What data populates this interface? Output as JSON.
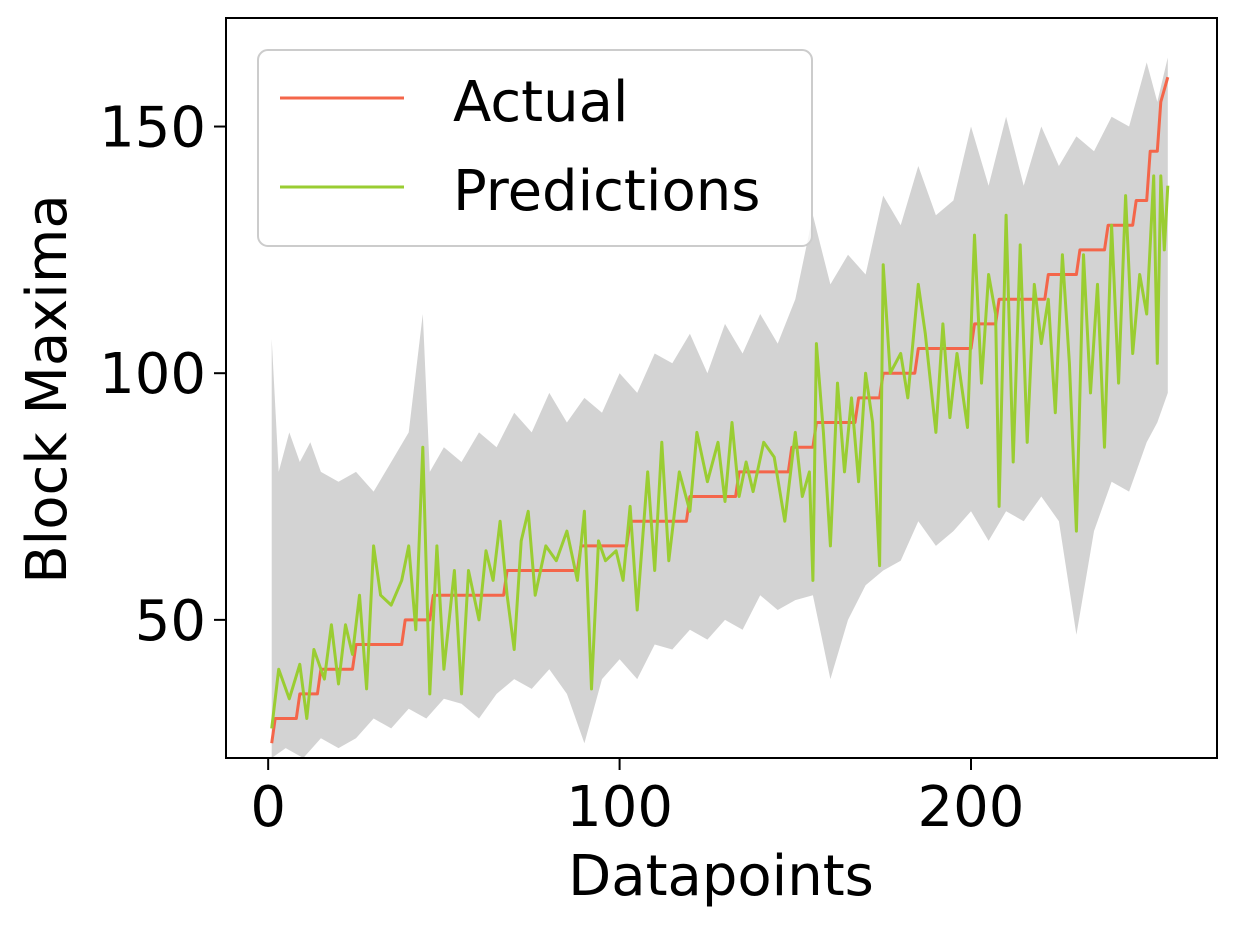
{
  "chart_data": {
    "type": "line",
    "title": "",
    "xlabel": "Datapoints",
    "ylabel": "Block Maxima",
    "xlim": [
      -12,
      270
    ],
    "ylim": [
      22,
      172
    ],
    "xticks": [
      0,
      100,
      200
    ],
    "yticks": [
      50,
      100,
      150
    ],
    "grid": false,
    "legend": {
      "placement": "upper-left",
      "entries": [
        "Actual",
        "Predictions"
      ]
    },
    "colors": {
      "actual": "#f4664a",
      "predictions": "#9acd32",
      "band": "#d3d3d3"
    },
    "series": [
      {
        "name": "Actual",
        "color": "#f4664a",
        "steps": [
          [
            1,
            25
          ],
          [
            2,
            30
          ],
          [
            8,
            30
          ],
          [
            9,
            35
          ],
          [
            14,
            35
          ],
          [
            15,
            40
          ],
          [
            24,
            40
          ],
          [
            25,
            45
          ],
          [
            38,
            45
          ],
          [
            39,
            50
          ],
          [
            46,
            50
          ],
          [
            47,
            55
          ],
          [
            67,
            55
          ],
          [
            68,
            60
          ],
          [
            88,
            60
          ],
          [
            89,
            65
          ],
          [
            102,
            65
          ],
          [
            103,
            70
          ],
          [
            119,
            70
          ],
          [
            120,
            75
          ],
          [
            133,
            75
          ],
          [
            134,
            80
          ],
          [
            148,
            80
          ],
          [
            149,
            85
          ],
          [
            155,
            85
          ],
          [
            156,
            90
          ],
          [
            167,
            90
          ],
          [
            168,
            95
          ],
          [
            174,
            95
          ],
          [
            175,
            100
          ],
          [
            184,
            100
          ],
          [
            185,
            105
          ],
          [
            200,
            105
          ],
          [
            201,
            110
          ],
          [
            207,
            110
          ],
          [
            208,
            115
          ],
          [
            221,
            115
          ],
          [
            222,
            120
          ],
          [
            230,
            120
          ],
          [
            231,
            125
          ],
          [
            238,
            125
          ],
          [
            239,
            130
          ],
          [
            246,
            130
          ],
          [
            247,
            135
          ],
          [
            250,
            135
          ],
          [
            251,
            145
          ],
          [
            253,
            145
          ],
          [
            254,
            155
          ],
          [
            256,
            160
          ]
        ]
      },
      {
        "name": "Predictions",
        "color": "#9acd32",
        "anchors": [
          [
            1,
            28
          ],
          [
            3,
            40
          ],
          [
            6,
            34
          ],
          [
            9,
            41
          ],
          [
            11,
            30
          ],
          [
            13,
            44
          ],
          [
            16,
            38
          ],
          [
            18,
            49
          ],
          [
            20,
            37
          ],
          [
            22,
            49
          ],
          [
            24,
            43
          ],
          [
            26,
            55
          ],
          [
            28,
            36
          ],
          [
            30,
            65
          ],
          [
            32,
            55
          ],
          [
            35,
            53
          ],
          [
            38,
            58
          ],
          [
            40,
            65
          ],
          [
            42,
            48
          ],
          [
            44,
            85
          ],
          [
            46,
            35
          ],
          [
            48,
            65
          ],
          [
            50,
            40
          ],
          [
            53,
            60
          ],
          [
            55,
            35
          ],
          [
            57,
            60
          ],
          [
            60,
            50
          ],
          [
            62,
            64
          ],
          [
            64,
            58
          ],
          [
            66,
            70
          ],
          [
            68,
            55
          ],
          [
            70,
            44
          ],
          [
            72,
            66
          ],
          [
            74,
            72
          ],
          [
            76,
            55
          ],
          [
            79,
            65
          ],
          [
            82,
            62
          ],
          [
            85,
            68
          ],
          [
            88,
            58
          ],
          [
            90,
            72
          ],
          [
            92,
            36
          ],
          [
            94,
            66
          ],
          [
            96,
            62
          ],
          [
            99,
            64
          ],
          [
            101,
            58
          ],
          [
            103,
            73
          ],
          [
            105,
            52
          ],
          [
            108,
            80
          ],
          [
            110,
            60
          ],
          [
            112,
            86
          ],
          [
            114,
            62
          ],
          [
            117,
            80
          ],
          [
            120,
            72
          ],
          [
            122,
            88
          ],
          [
            125,
            78
          ],
          [
            128,
            86
          ],
          [
            130,
            74
          ],
          [
            132,
            90
          ],
          [
            134,
            75
          ],
          [
            136,
            82
          ],
          [
            138,
            76
          ],
          [
            141,
            86
          ],
          [
            144,
            83
          ],
          [
            147,
            70
          ],
          [
            150,
            88
          ],
          [
            152,
            75
          ],
          [
            154,
            80
          ],
          [
            155,
            58
          ],
          [
            156,
            106
          ],
          [
            158,
            88
          ],
          [
            160,
            65
          ],
          [
            162,
            98
          ],
          [
            164,
            80
          ],
          [
            166,
            95
          ],
          [
            168,
            78
          ],
          [
            170,
            100
          ],
          [
            172,
            90
          ],
          [
            174,
            61
          ],
          [
            175,
            122
          ],
          [
            177,
            100
          ],
          [
            180,
            104
          ],
          [
            182,
            95
          ],
          [
            185,
            118
          ],
          [
            187,
            108
          ],
          [
            190,
            88
          ],
          [
            192,
            110
          ],
          [
            194,
            91
          ],
          [
            196,
            104
          ],
          [
            199,
            89
          ],
          [
            201,
            128
          ],
          [
            203,
            98
          ],
          [
            205,
            120
          ],
          [
            207,
            112
          ],
          [
            208,
            73
          ],
          [
            210,
            132
          ],
          [
            212,
            82
          ],
          [
            214,
            126
          ],
          [
            216,
            86
          ],
          [
            218,
            118
          ],
          [
            220,
            106
          ],
          [
            222,
            115
          ],
          [
            224,
            92
          ],
          [
            226,
            124
          ],
          [
            228,
            102
          ],
          [
            230,
            68
          ],
          [
            232,
            124
          ],
          [
            234,
            96
          ],
          [
            236,
            118
          ],
          [
            238,
            85
          ],
          [
            240,
            130
          ],
          [
            242,
            98
          ],
          [
            244,
            136
          ],
          [
            246,
            104
          ],
          [
            248,
            120
          ],
          [
            250,
            112
          ],
          [
            252,
            140
          ],
          [
            253,
            102
          ],
          [
            254,
            140
          ],
          [
            255,
            125
          ],
          [
            256,
            138
          ]
        ]
      }
    ],
    "uncertainty_band": {
      "upper_anchors": [
        [
          1,
          107
        ],
        [
          3,
          80
        ],
        [
          6,
          88
        ],
        [
          9,
          82
        ],
        [
          12,
          86
        ],
        [
          15,
          80
        ],
        [
          20,
          78
        ],
        [
          25,
          80
        ],
        [
          30,
          76
        ],
        [
          35,
          82
        ],
        [
          40,
          88
        ],
        [
          44,
          112
        ],
        [
          46,
          80
        ],
        [
          50,
          85
        ],
        [
          55,
          82
        ],
        [
          60,
          88
        ],
        [
          65,
          85
        ],
        [
          70,
          92
        ],
        [
          75,
          88
        ],
        [
          80,
          96
        ],
        [
          85,
          90
        ],
        [
          90,
          95
        ],
        [
          95,
          92
        ],
        [
          100,
          100
        ],
        [
          105,
          96
        ],
        [
          110,
          104
        ],
        [
          115,
          102
        ],
        [
          120,
          108
        ],
        [
          125,
          100
        ],
        [
          130,
          110
        ],
        [
          135,
          104
        ],
        [
          140,
          112
        ],
        [
          145,
          106
        ],
        [
          150,
          115
        ],
        [
          155,
          132
        ],
        [
          160,
          118
        ],
        [
          165,
          124
        ],
        [
          170,
          120
        ],
        [
          175,
          136
        ],
        [
          180,
          130
        ],
        [
          185,
          142
        ],
        [
          190,
          132
        ],
        [
          195,
          135
        ],
        [
          200,
          150
        ],
        [
          205,
          138
        ],
        [
          210,
          152
        ],
        [
          215,
          138
        ],
        [
          220,
          150
        ],
        [
          225,
          142
        ],
        [
          230,
          148
        ],
        [
          235,
          145
        ],
        [
          240,
          152
        ],
        [
          245,
          150
        ],
        [
          250,
          163
        ],
        [
          253,
          155
        ],
        [
          256,
          164
        ]
      ],
      "lower_anchors": [
        [
          1,
          22
        ],
        [
          5,
          24
        ],
        [
          10,
          22
        ],
        [
          15,
          26
        ],
        [
          20,
          24
        ],
        [
          25,
          26
        ],
        [
          30,
          30
        ],
        [
          35,
          28
        ],
        [
          40,
          32
        ],
        [
          45,
          30
        ],
        [
          50,
          34
        ],
        [
          55,
          33
        ],
        [
          60,
          30
        ],
        [
          65,
          35
        ],
        [
          70,
          38
        ],
        [
          75,
          36
        ],
        [
          80,
          40
        ],
        [
          85,
          35
        ],
        [
          90,
          25
        ],
        [
          95,
          38
        ],
        [
          100,
          42
        ],
        [
          105,
          38
        ],
        [
          110,
          45
        ],
        [
          115,
          44
        ],
        [
          120,
          48
        ],
        [
          125,
          46
        ],
        [
          130,
          50
        ],
        [
          135,
          48
        ],
        [
          140,
          55
        ],
        [
          145,
          52
        ],
        [
          150,
          54
        ],
        [
          155,
          55
        ],
        [
          160,
          38
        ],
        [
          165,
          50
        ],
        [
          170,
          57
        ],
        [
          175,
          60
        ],
        [
          180,
          62
        ],
        [
          185,
          70
        ],
        [
          190,
          65
        ],
        [
          195,
          68
        ],
        [
          200,
          72
        ],
        [
          205,
          66
        ],
        [
          210,
          72
        ],
        [
          215,
          70
        ],
        [
          220,
          75
        ],
        [
          225,
          70
        ],
        [
          230,
          47
        ],
        [
          235,
          68
        ],
        [
          240,
          78
        ],
        [
          245,
          76
        ],
        [
          250,
          86
        ],
        [
          253,
          90
        ],
        [
          256,
          96
        ]
      ]
    }
  }
}
